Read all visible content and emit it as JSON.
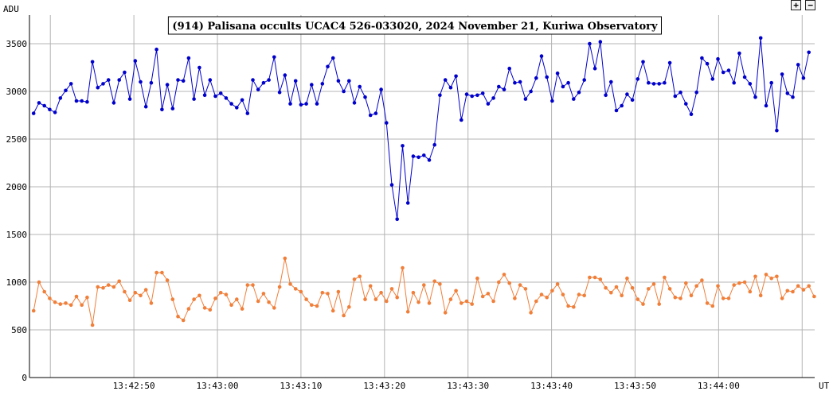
{
  "controls": {
    "zoom_in_label": "+",
    "zoom_out_label": "−"
  },
  "chart_data": {
    "type": "line",
    "title": "(914) Palisana occults UCAC4 526-033020, 2024 November 21, Kuriwa Observatory",
    "xlabel": "UT",
    "ylabel": "ADU",
    "ylim": [
      0,
      3800
    ],
    "xlim": [
      "13:42:37.5",
      "13:44:11.5"
    ],
    "yticks": [
      0,
      500,
      1000,
      1500,
      2000,
      2500,
      3000,
      3500
    ],
    "xticks": [
      "13:42:50",
      "13:43:00",
      "13:43:10",
      "13:43:20",
      "13:43:30",
      "13:43:40",
      "13:43:50",
      "13:44:00"
    ],
    "grid": true,
    "legend": "none",
    "x_start": "13:42:38.0",
    "x_step_seconds": 0.64,
    "series": [
      {
        "color": "#0000cc",
        "values": [
          2770,
          2880,
          2850,
          2810,
          2780,
          2930,
          3010,
          3080,
          2900,
          2900,
          2890,
          3310,
          3040,
          3080,
          3120,
          2880,
          3120,
          3200,
          2920,
          3320,
          3100,
          2840,
          3090,
          3440,
          2810,
          3070,
          2820,
          3120,
          3110,
          3350,
          2920,
          3250,
          2960,
          3120,
          2950,
          2980,
          2930,
          2870,
          2830,
          2910,
          2770,
          3120,
          3020,
          3090,
          3120,
          3360,
          2990,
          3170,
          2870,
          3110,
          2860,
          2870,
          3070,
          2870,
          3080,
          3260,
          3350,
          3110,
          3000,
          3110,
          2880,
          3050,
          2940,
          2750,
          2770,
          3020,
          2670,
          2020,
          1660,
          2430,
          1830,
          2320,
          2310,
          2330,
          2280,
          2440,
          2960,
          3120,
          3040,
          3160,
          2700,
          2970,
          2950,
          2960,
          2980,
          2870,
          2930,
          3050,
          3020,
          3240,
          3090,
          3100,
          2920,
          3000,
          3140,
          3370,
          3150,
          2900,
          3190,
          3050,
          3090,
          2920,
          2990,
          3120,
          3500,
          3240,
          3520,
          2960,
          3100,
          2800,
          2850,
          2970,
          2910,
          3130,
          3310,
          3090,
          3080,
          3080,
          3090,
          3300,
          2950,
          2990,
          2870,
          2760,
          2990,
          3350,
          3290,
          3130,
          3340,
          3200,
          3220,
          3090,
          3400,
          3150,
          3080,
          2940,
          3560,
          2850,
          3090,
          2590,
          3180,
          2980,
          2940,
          3280,
          3140,
          3410
        ]
      },
      {
        "color": "#f07f3a",
        "values": [
          700,
          1000,
          900,
          830,
          790,
          770,
          780,
          760,
          850,
          760,
          840,
          550,
          950,
          940,
          970,
          950,
          1010,
          900,
          810,
          890,
          860,
          920,
          780,
          1100,
          1100,
          1020,
          820,
          640,
          600,
          720,
          820,
          860,
          730,
          710,
          830,
          890,
          870,
          760,
          820,
          720,
          970,
          970,
          800,
          880,
          790,
          730,
          950,
          1250,
          980,
          930,
          900,
          820,
          760,
          750,
          890,
          880,
          700,
          900,
          650,
          740,
          1030,
          1060,
          820,
          960,
          820,
          890,
          800,
          930,
          840,
          1150,
          690,
          890,
          790,
          970,
          780,
          1010,
          980,
          680,
          820,
          910,
          780,
          800,
          770,
          1040,
          850,
          880,
          800,
          1000,
          1080,
          990,
          830,
          970,
          930,
          680,
          800,
          870,
          840,
          910,
          980,
          870,
          750,
          740,
          870,
          860,
          1050,
          1050,
          1030,
          940,
          890,
          950,
          860,
          1040,
          940,
          820,
          770,
          930,
          980,
          770,
          1050,
          930,
          840,
          830,
          990,
          860,
          960,
          1020,
          780,
          750,
          960,
          830,
          830,
          970,
          990,
          1000,
          900,
          1060,
          860,
          1080,
          1040,
          1060,
          830,
          910,
          900,
          960,
          920,
          960,
          850
        ]
      }
    ]
  }
}
